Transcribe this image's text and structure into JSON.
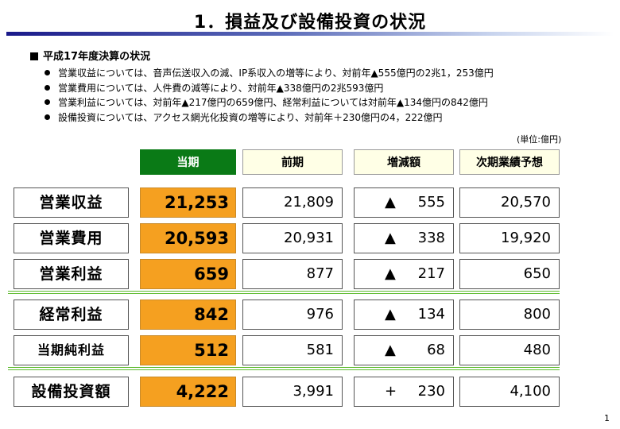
{
  "title": "1．損益及び設備投資の状況",
  "section_heading": "平成17年度決算の状況",
  "bullets": [
    "営業収益については、音声伝送収入の減、IP系収入の増等により、対前年▲555億円の2兆1，253億円",
    "営業費用については、人件費の減等により、対前年▲338億円の2兆593億円",
    "営業利益については、対前年▲217億円の659億円、経常利益については対前年▲134億円の842億円",
    "設備投資については、アクセス網光化投資の増等により、対前年＋230億円の4，222億円"
  ],
  "unit_note": "(単位:億円)",
  "headers": {
    "current": "当期",
    "previous": "前期",
    "change": "増減額",
    "forecast": "次期業績予想"
  },
  "rows": [
    {
      "label": "営業収益",
      "current": "21,253",
      "previous": "21,809",
      "change_sign": "▲",
      "change": "555",
      "forecast": "20,570"
    },
    {
      "label": "営業費用",
      "current": "20,593",
      "previous": "20,931",
      "change_sign": "▲",
      "change": "338",
      "forecast": "19,920"
    },
    {
      "label": "営業利益",
      "current": "659",
      "previous": "877",
      "change_sign": "▲",
      "change": "217",
      "forecast": "650"
    },
    {
      "label": "経常利益",
      "current": "842",
      "previous": "976",
      "change_sign": "▲",
      "change": "134",
      "forecast": "800"
    },
    {
      "label": "当期純利益",
      "current": "512",
      "previous": "581",
      "change_sign": "▲",
      "change": "68",
      "forecast": "480"
    },
    {
      "label": "設備投資額",
      "current": "4,222",
      "previous": "3,991",
      "change_sign": "+",
      "change": "230",
      "forecast": "4,100"
    }
  ],
  "colors": {
    "current_header": "#0a7a16",
    "current_cell": "#f5a020",
    "separator": "#5dbb2e",
    "title_bar": "#1a1a8a"
  },
  "page_number": "1"
}
